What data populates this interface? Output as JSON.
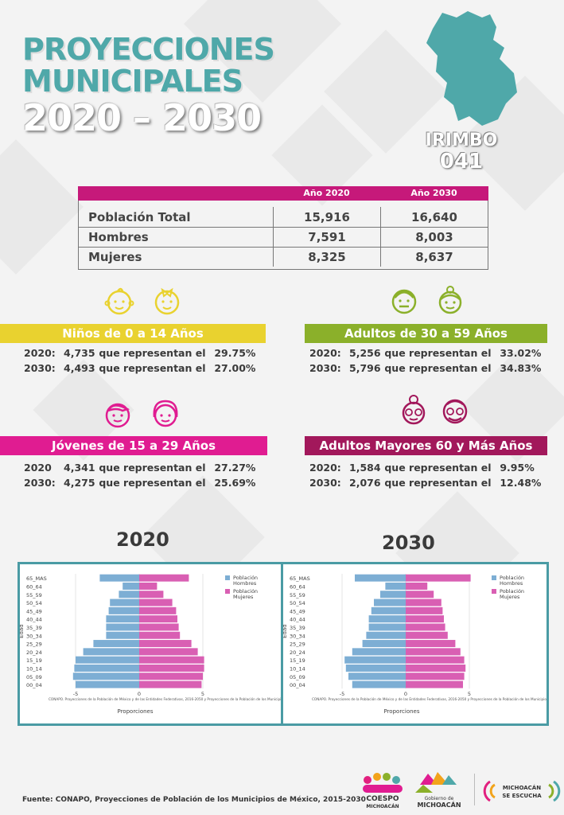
{
  "title": {
    "line1": "PROYECCIONES",
    "line2": "MUNICIPALES",
    "line3": "2020 – 2030"
  },
  "municipality": {
    "name": "IRIMBO",
    "code": "041"
  },
  "population_table": {
    "header": [
      "",
      "Año 2020",
      "Año 2030"
    ],
    "rows": [
      {
        "label": "Población Total",
        "y2020": "15,916",
        "y2030": "16,640"
      },
      {
        "label": "Hombres",
        "y2020": "7,591",
        "y2030": "8,003"
      },
      {
        "label": "Mujeres",
        "y2020": "8,325",
        "y2030": "8,637"
      }
    ]
  },
  "groups": {
    "children": {
      "title": "Niños de 0 a 14 Años",
      "color": "#e9d22f",
      "lines": [
        {
          "year": "2020:",
          "value": "4,735",
          "text": "que representan el",
          "pct": "29.75%"
        },
        {
          "year": "2030:",
          "value": "4,493",
          "text": "que representan el",
          "pct": "27.00%"
        }
      ]
    },
    "adults": {
      "title": "Adultos de 30 a 59 Años",
      "color": "#8bb02a",
      "lines": [
        {
          "year": "2020:",
          "value": "5,256",
          "text": "que representan el",
          "pct": "33.02%"
        },
        {
          "year": "2030:",
          "value": "5,796",
          "text": "que representan el",
          "pct": "34.83%"
        }
      ]
    },
    "youth": {
      "title": "Jóvenes de 15 a 29 Años",
      "color": "#e01c91",
      "lines": [
        {
          "year": "2020",
          "value": "4,341",
          "text": "que representan el",
          "pct": "27.27%"
        },
        {
          "year": "2030:",
          "value": "4,275",
          "text": "que representan el",
          "pct": "25.69%"
        }
      ]
    },
    "seniors": {
      "title": "Adultos Mayores  60 y Más Años",
      "color": "#a2185b",
      "lines": [
        {
          "year": "2020:",
          "value": "1,584",
          "text": "que representan el",
          "pct": "9.95%"
        },
        {
          "year": "2030:",
          "value": "2,076",
          "text": "que representan el",
          "pct": "12.48%"
        }
      ]
    }
  },
  "pyramids": {
    "heading_2020": "2020",
    "heading_2030": "2030",
    "colors": {
      "male": "#7daed4",
      "female": "#d95fb3"
    },
    "note": "CONAPO. Proyecciones de la Población de México y de las Entidades Federativas, 2016-2050 y Proyecciones de la Población de los Municipios de México",
    "xlabel": "Proporciones",
    "ylabel": "Edad",
    "legend_male": [
      "Población",
      "Hombres"
    ],
    "legend_female": [
      "Población",
      "Mujeres"
    ]
  },
  "chart_data": [
    {
      "type": "bar",
      "orientation": "horizontal-population-pyramid",
      "title": "2020",
      "categories": [
        "00_04",
        "05_09",
        "10_14",
        "15_19",
        "20_24",
        "25_29",
        "30_34",
        "35_39",
        "40_44",
        "45_49",
        "50_54",
        "55_59",
        "60_64",
        "65_MAS"
      ],
      "series": [
        {
          "name": "Población Hombres",
          "values": [
            -5.0,
            -5.2,
            -5.1,
            -5.0,
            -4.4,
            -3.6,
            -2.6,
            -2.6,
            -2.6,
            -2.4,
            -2.3,
            -1.6,
            -1.3,
            -3.1
          ]
        },
        {
          "name": "Población Mujeres",
          "values": [
            4.9,
            5.0,
            5.1,
            5.1,
            4.6,
            4.1,
            3.2,
            3.1,
            3.0,
            2.9,
            2.6,
            1.9,
            1.4,
            3.9
          ]
        }
      ],
      "xlabel": "Proporciones",
      "ylabel": "Edad",
      "xticks": [
        "-5",
        "0",
        "5"
      ],
      "xlim": [
        -6,
        6
      ],
      "legend": "top-right"
    },
    {
      "type": "bar",
      "orientation": "horizontal-population-pyramid",
      "title": "2030",
      "categories": [
        "00_04",
        "05_09",
        "10_14",
        "15_19",
        "20_24",
        "25_29",
        "30_34",
        "35_39",
        "40_44",
        "45_49",
        "50_54",
        "55_59",
        "60_64",
        "65_MAS"
      ],
      "series": [
        {
          "name": "Población Hombres",
          "values": [
            -4.2,
            -4.5,
            -4.7,
            -4.8,
            -4.2,
            -3.4,
            -3.1,
            -2.9,
            -2.9,
            -2.7,
            -2.5,
            -2.0,
            -1.6,
            -4.0
          ]
        },
        {
          "name": "Población Mujeres",
          "values": [
            4.5,
            4.6,
            4.7,
            4.6,
            4.3,
            3.9,
            3.3,
            3.1,
            3.0,
            2.9,
            2.8,
            2.2,
            1.7,
            5.1
          ]
        }
      ],
      "xlabel": "Proporciones",
      "ylabel": "Edad",
      "xticks": [
        "-5",
        "0",
        "5"
      ],
      "xlim": [
        -6,
        6
      ],
      "legend": "top-right"
    }
  ],
  "footer": {
    "source": "Fuente: CONAPO, Proyecciones de Población de los Municipios de México, 2015-2030"
  },
  "logos": {
    "coespo": [
      "COESPO",
      "MICHOACÁN"
    ],
    "gobierno": [
      "Gobierno de",
      "MICHOACÁN"
    ],
    "escucha": [
      "MICHOACÁN",
      "SE ESCUCHA"
    ]
  }
}
